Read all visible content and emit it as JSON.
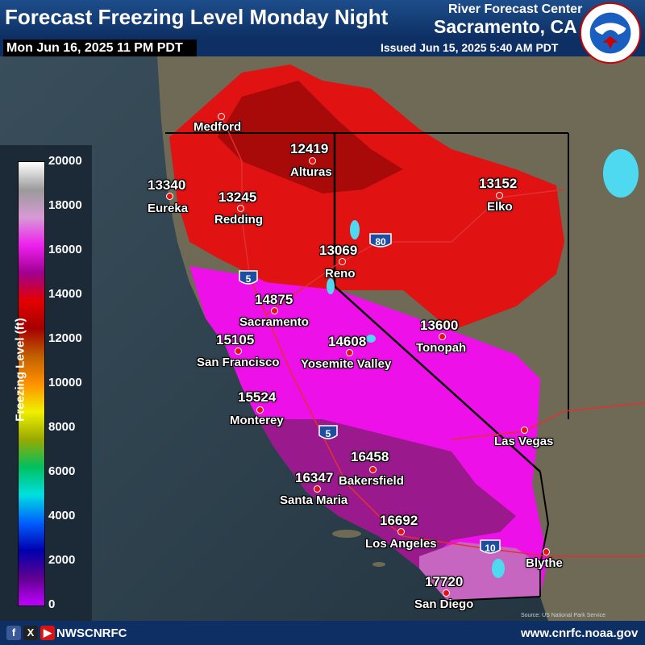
{
  "header": {
    "title": "Forecast Freezing Level Monday Night",
    "center_line1": "River Forecast Center",
    "center_line2": "Sacramento, CA",
    "valid_time": "Mon Jun 16, 2025 11 PM PDT",
    "issued": "Issued Jun 15, 2025 5:40 AM PDT",
    "logo_text": "NATIONAL WEATHER SERVICE"
  },
  "legend": {
    "title": "Freezing Level (ft)",
    "ticks": [
      "20000",
      "18000",
      "16000",
      "14000",
      "12000",
      "10000",
      "8000",
      "6000",
      "4000",
      "2000",
      "0"
    ],
    "colors": [
      "#ffffff",
      "#9a9a9a",
      "#d79ad6",
      "#ee20ee",
      "#a00090",
      "#e40000",
      "#a60000",
      "#c06000",
      "#ff9000",
      "#f0f000",
      "#9aaa00",
      "#00c060",
      "#00e0e0",
      "#0060ff",
      "#0000b0",
      "#600090",
      "#c000ff"
    ]
  },
  "cities": [
    {
      "name": "Medford",
      "value": ""
    },
    {
      "name": "Alturas",
      "value": "12419"
    },
    {
      "name": "Eureka",
      "value": "13340"
    },
    {
      "name": "Redding",
      "value": "13245"
    },
    {
      "name": "Elko",
      "value": "13152"
    },
    {
      "name": "Reno",
      "value": "13069"
    },
    {
      "name": "Sacramento",
      "value": "14875"
    },
    {
      "name": "San Francisco",
      "value": "15105"
    },
    {
      "name": "Yosemite Valley",
      "value": "14608"
    },
    {
      "name": "Tonopah",
      "value": "13600"
    },
    {
      "name": "Monterey",
      "value": "15524"
    },
    {
      "name": "Las Vegas",
      "value": ""
    },
    {
      "name": "Bakersfield",
      "value": "16458"
    },
    {
      "name": "Santa Maria",
      "value": "16347"
    },
    {
      "name": "Los Angeles",
      "value": "16692"
    },
    {
      "name": "Blythe",
      "value": ""
    },
    {
      "name": "San Diego",
      "value": "17720"
    }
  ],
  "interstates": [
    "5",
    "80",
    "5",
    "10"
  ],
  "source_note": "Source: US National Park Service",
  "footer": {
    "social_handle": "NWSCNRFC",
    "url": "www.cnrfc.noaa.gov",
    "icons": [
      "facebook-icon",
      "x-icon",
      "youtube-icon"
    ]
  }
}
